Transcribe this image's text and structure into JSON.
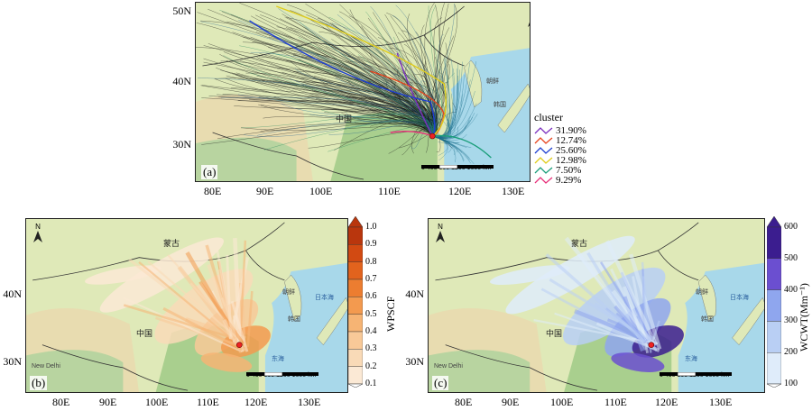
{
  "panel_a": {
    "label": "(a)",
    "lat_ticks": [
      "50N",
      "40N",
      "30N"
    ],
    "lon_ticks": [
      "80E",
      "90E",
      "100E",
      "110E",
      "120E",
      "130E"
    ],
    "places": {
      "china": "中国",
      "korea": "朝鲜",
      "south_korea": "韩国",
      "scale": "0  400  800  1200  1600",
      "km": "km"
    },
    "legend": {
      "title": "cluster",
      "entries": [
        {
          "label": "31.90%",
          "color": "#7b2fbf"
        },
        {
          "label": "12.74%",
          "color": "#e8431c"
        },
        {
          "label": "25.60%",
          "color": "#1f3fd1"
        },
        {
          "label": "12.98%",
          "color": "#e0cc1a"
        },
        {
          "label": "7.50%",
          "color": "#1a9e7a"
        },
        {
          "label": "9.29%",
          "color": "#e8307a"
        }
      ]
    }
  },
  "panel_b": {
    "label": "(b)",
    "lat_ticks": [
      "40N",
      "30N"
    ],
    "lon_ticks": [
      "80E",
      "90E",
      "100E",
      "110E",
      "120E",
      "130E"
    ],
    "places": {
      "mongolia": "蒙古",
      "china": "中国",
      "korea": "朝鲜",
      "south_korea": "韩国",
      "sea_of_japan": "日本海",
      "east_sea": "东海",
      "new_delhi": "New Delhi",
      "scale": "0  400  800  1200  1600",
      "km": "km"
    },
    "colorbar": {
      "title": "WPSCF",
      "ticks": [
        "1.0",
        "0.9",
        "0.8",
        "0.7",
        "0.6",
        "0.5",
        "0.4",
        "0.3",
        "0.2",
        "0.1"
      ],
      "colors": [
        "#b9360d",
        "#d24a12",
        "#e2631d",
        "#ec7d30",
        "#f39a4f",
        "#f6b474",
        "#f8c998",
        "#f9dab7",
        "#fbe9d5"
      ]
    }
  },
  "panel_c": {
    "label": "(c)",
    "lat_ticks": [
      "40N",
      "30N"
    ],
    "lon_ticks": [
      "80E",
      "90E",
      "100E",
      "110E",
      "120E",
      "130E"
    ],
    "places": {
      "mongolia": "蒙古",
      "china": "中国",
      "korea": "朝鲜",
      "south_korea": "韩国",
      "sea_of_japan": "日本海",
      "east_sea": "东海",
      "new_delhi": "New Delhi",
      "scale": "0  400  800  1200  1600",
      "km": "km"
    },
    "colorbar": {
      "title": "WCWT(Mm⁻¹)",
      "ticks": [
        "600",
        "500",
        "400",
        "300",
        "200",
        "100"
      ],
      "colors": [
        "#3b1d8f",
        "#6b4fd0",
        "#8fa6ee",
        "#b9cff4",
        "#dfecfa"
      ]
    }
  }
}
